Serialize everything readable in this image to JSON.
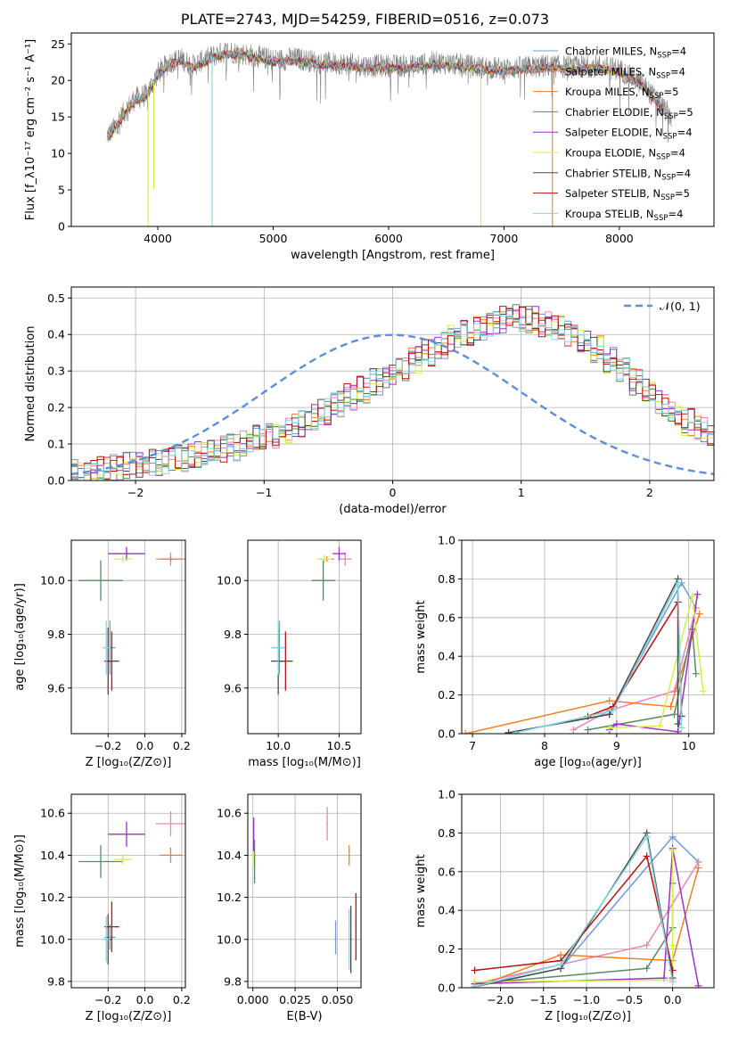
{
  "title": "PLATE=2743, MJD=54259, FIBERID=0516, z=0.073",
  "colors": {
    "chabrier_miles": "#6f9bd6",
    "salpeter_miles": "#ee82b4",
    "kroupa_miles": "#f07f23",
    "chabrier_elodie": "#5a8a66",
    "salpeter_elodie": "#9b30c2",
    "kroupa_elodie": "#d7ec4e",
    "chabrier_stelib": "#4a4a4a",
    "salpeter_stelib": "#b81111",
    "kroupa_stelib": "#7fd6dc",
    "spectrum": "#808080",
    "normal": "#5b8fd9",
    "grid": "#b0b0b0"
  },
  "chart_data": [
    {
      "id": "spectrum",
      "type": "line",
      "xlabel": "wavelength [Angstrom, rest frame]",
      "ylabel": "Flux [f_λ10⁻¹⁷ erg cm⁻² s⁻¹ A⁻¹]",
      "xlim": [
        3250,
        8820
      ],
      "ylim": [
        0,
        26.5
      ],
      "xticks": [
        4000,
        5000,
        6000,
        7000,
        8000
      ],
      "yticks": [
        0,
        5,
        10,
        15,
        20,
        25
      ],
      "grid": false,
      "legend_position": "upper-right",
      "data_range": [
        3560,
        8450
      ],
      "shape_x": [
        3560,
        3600,
        3700,
        3800,
        3900,
        4000,
        4100,
        4200,
        4300,
        4400,
        4500,
        4600,
        4800,
        5000,
        5200,
        5400,
        5600,
        5800,
        6000,
        6200,
        6400,
        6600,
        6800,
        7000,
        7200,
        7400,
        7600,
        7800,
        8000,
        8200,
        8450
      ],
      "shape_y": [
        12.5,
        13.0,
        15.5,
        17.5,
        18.0,
        21.0,
        22.5,
        23.0,
        22.0,
        22.8,
        23.5,
        24.0,
        23.5,
        22.8,
        23.0,
        22.5,
        22.3,
        22.0,
        22.0,
        22.0,
        22.5,
        22.2,
        21.8,
        21.6,
        21.8,
        22.0,
        21.8,
        22.0,
        21.5,
        19.5,
        15.0
      ],
      "spikes": [
        [
          3915,
          0
        ],
        [
          4470,
          0
        ],
        [
          6800,
          0
        ],
        [
          7420,
          0
        ],
        [
          3965,
          5
        ]
      ],
      "legend": [
        {
          "label": "Chabrier MILES, N",
          "sub": "SSP",
          "suffix": "=4",
          "color_key": "chabrier_miles"
        },
        {
          "label": "Salpeter MILES, N",
          "sub": "SSP",
          "suffix": "=4",
          "color_key": "salpeter_miles"
        },
        {
          "label": "Kroupa MILES, N",
          "sub": "SSP",
          "suffix": "=5",
          "color_key": "kroupa_miles"
        },
        {
          "label": "Chabrier ELODIE, N",
          "sub": "SSP",
          "suffix": "=5",
          "color_key": "chabrier_elodie"
        },
        {
          "label": "Salpeter ELODIE, N",
          "sub": "SSP",
          "suffix": "=4",
          "color_key": "salpeter_elodie"
        },
        {
          "label": "Kroupa ELODIE, N",
          "sub": "SSP",
          "suffix": "=4",
          "color_key": "kroupa_elodie"
        },
        {
          "label": "Chabrier STELIB, N",
          "sub": "SSP",
          "suffix": "=4",
          "color_key": "chabrier_stelib"
        },
        {
          "label": "Salpeter STELIB, N",
          "sub": "SSP",
          "suffix": "=5",
          "color_key": "salpeter_stelib"
        },
        {
          "label": "Kroupa STELIB, N",
          "sub": "SSP",
          "suffix": "=4",
          "color_key": "kroupa_stelib"
        }
      ]
    },
    {
      "id": "residuals",
      "type": "line",
      "xlabel": "(data-model)/error",
      "ylabel": "Normed distribution",
      "xlim": [
        -2.5,
        2.5
      ],
      "ylim": [
        0,
        0.53
      ],
      "xticks": [
        -2,
        -1,
        0,
        1,
        2
      ],
      "yticks": [
        0.0,
        0.1,
        0.2,
        0.3,
        0.4,
        0.5
      ],
      "grid": true,
      "legend": "𝒩(0, 1)",
      "legend_position": "upper-right",
      "histogram_bins": [
        -2.5,
        2.5,
        0.1
      ],
      "histogram_envelope": [
        0.02,
        0.025,
        0.03,
        0.035,
        0.04,
        0.045,
        0.05,
        0.055,
        0.06,
        0.07,
        0.075,
        0.085,
        0.09,
        0.1,
        0.115,
        0.125,
        0.14,
        0.155,
        0.175,
        0.19,
        0.21,
        0.23,
        0.25,
        0.27,
        0.29,
        0.31,
        0.33,
        0.35,
        0.37,
        0.39,
        0.405,
        0.42,
        0.43,
        0.44,
        0.445,
        0.44,
        0.43,
        0.42,
        0.4,
        0.38,
        0.36,
        0.33,
        0.3,
        0.27,
        0.24,
        0.21,
        0.185,
        0.16,
        0.14,
        0.12
      ]
    },
    {
      "id": "age_vs_z",
      "type": "scatter",
      "xlabel": "Z [log₁₀(Z/Z⊙)]",
      "ylabel": "age  [log₁₀(age/yr)]",
      "xlim": [
        -0.4,
        0.22
      ],
      "ylim": [
        9.43,
        10.15
      ],
      "xticks": [
        -0.2,
        0.0,
        0.2
      ],
      "yticks": [
        9.6,
        9.8,
        10.0
      ],
      "grid": true
    },
    {
      "id": "age_vs_mass",
      "type": "scatter",
      "xlabel": "mass [log₁₀(M/M⊙)]",
      "ylabel": "",
      "xlim": [
        9.75,
        10.68
      ],
      "ylim": [
        9.43,
        10.15
      ],
      "xticks": [
        10.0,
        10.5
      ],
      "yticks": [
        9.6,
        9.8,
        10.0
      ],
      "grid": true
    },
    {
      "id": "weight_vs_age",
      "type": "line",
      "xlabel": "age  [log₁₀(age/yr)]",
      "ylabel": "mass weight",
      "xlim": [
        6.85,
        10.35
      ],
      "ylim": [
        0,
        1.0
      ],
      "xticks": [
        7,
        8,
        9,
        10
      ],
      "yticks": [
        0.0,
        0.2,
        0.4,
        0.6,
        0.8,
        1.0
      ],
      "grid": true
    },
    {
      "id": "mass_vs_z",
      "type": "scatter",
      "xlabel": "Z [log₁₀(Z/Z⊙)]",
      "ylabel": "mass [log₁₀(M/M⊙)]",
      "xlim": [
        -0.4,
        0.22
      ],
      "ylim": [
        9.77,
        10.69
      ],
      "xticks": [
        -0.2,
        0.0,
        0.2
      ],
      "yticks": [
        9.8,
        10.0,
        10.2,
        10.4,
        10.6
      ],
      "grid": true
    },
    {
      "id": "mass_vs_ebv",
      "type": "scatter",
      "xlabel": "E(B-V)",
      "ylabel": "",
      "xlim": [
        -0.003,
        0.064
      ],
      "ylim": [
        9.77,
        10.69
      ],
      "xticks": [
        0.0,
        0.025,
        0.05
      ],
      "yticks": [
        9.8,
        10.0,
        10.2,
        10.4,
        10.6
      ],
      "grid": true
    },
    {
      "id": "weight_vs_z",
      "type": "line",
      "xlabel": "Z [log₁₀(Z/Z⊙)]",
      "ylabel": "mass weight",
      "xlim": [
        -2.45,
        0.48
      ],
      "ylim": [
        0,
        1.0
      ],
      "xticks": [
        -2.0,
        -1.5,
        -1.0,
        -0.5,
        0.0
      ],
      "yticks": [
        0.0,
        0.2,
        0.4,
        0.6,
        0.8,
        1.0
      ],
      "grid": true
    }
  ],
  "fits": [
    {
      "key": "chabrier_miles",
      "Z": -0.19,
      "age": 9.75,
      "mass": 10.01,
      "ebv": 0.049,
      "comps": [
        [
          7.5,
          -2.3,
          0.005
        ],
        [
          8.9,
          -1.3,
          0.1
        ],
        [
          9.9,
          0.0,
          0.78
        ],
        [
          10.1,
          0.3,
          0.65
        ]
      ]
    },
    {
      "key": "salpeter_miles",
      "Z": 0.14,
      "age": 10.08,
      "mass": 10.55,
      "ebv": 0.044,
      "comps": [
        [
          8.4,
          -2.3,
          0.02
        ],
        [
          8.9,
          -1.3,
          0.12
        ],
        [
          9.8,
          -0.3,
          0.22
        ],
        [
          10.1,
          0.3,
          0.65
        ]
      ]
    },
    {
      "key": "kroupa_miles",
      "Z": 0.14,
      "age": 10.08,
      "mass": 10.4,
      "ebv": 0.057,
      "comps": [
        [
          6.9,
          -2.3,
          0.0
        ],
        [
          8.9,
          -1.3,
          0.17
        ],
        [
          9.75,
          0.0,
          0.14
        ],
        [
          10.15,
          0.3,
          0.62
        ]
      ]
    },
    {
      "key": "chabrier_elodie",
      "Z": -0.24,
      "age": 10.0,
      "mass": 10.37,
      "ebv": 0.001,
      "comps": [
        [
          8.6,
          -2.3,
          0.02
        ],
        [
          9.8,
          -0.3,
          0.1
        ],
        [
          10.05,
          0.0,
          0.54
        ],
        [
          10.1,
          0.0,
          0.31
        ]
      ]
    },
    {
      "key": "salpeter_elodie",
      "Z": -0.1,
      "age": 10.1,
      "mass": 10.5,
      "ebv": 0.0005,
      "comps": [
        [
          8.9,
          -2.3,
          0.02
        ],
        [
          9.0,
          -0.1,
          0.05
        ],
        [
          9.85,
          0.3,
          0.01
        ],
        [
          10.12,
          0.0,
          0.72
        ]
      ]
    },
    {
      "key": "kroupa_elodie",
      "Z": -0.12,
      "age": 10.08,
      "mass": 10.38,
      "ebv": 0.0002,
      "comps": [
        [
          8.9,
          -2.3,
          0.03
        ],
        [
          9.6,
          0.0,
          0.04
        ],
        [
          10.05,
          0.0,
          0.71
        ],
        [
          10.2,
          0.0,
          0.22
        ]
      ]
    },
    {
      "key": "chabrier_stelib",
      "Z": -0.2,
      "age": 9.7,
      "mass": 10.0,
      "ebv": 0.058,
      "comps": [
        [
          7.5,
          -2.3,
          0.005
        ],
        [
          8.9,
          -1.3,
          0.1
        ],
        [
          9.85,
          -0.3,
          0.8
        ],
        [
          9.85,
          0.0,
          0.05
        ]
      ]
    },
    {
      "key": "salpeter_stelib",
      "Z": -0.18,
      "age": 9.7,
      "mass": 10.06,
      "ebv": 0.061,
      "comps": [
        [
          8.6,
          -2.3,
          0.09
        ],
        [
          8.95,
          -1.3,
          0.14
        ],
        [
          9.85,
          -0.3,
          0.68
        ],
        [
          9.9,
          0.0,
          0.09
        ]
      ]
    },
    {
      "key": "kroupa_stelib",
      "Z": -0.21,
      "age": 9.75,
      "mass": 10.0,
      "ebv": 0.057,
      "comps": [
        [
          7.6,
          -2.3,
          0.005
        ],
        [
          8.95,
          -1.3,
          0.12
        ],
        [
          9.85,
          -0.3,
          0.78
        ],
        [
          9.9,
          0.0,
          0.03
        ]
      ]
    }
  ]
}
